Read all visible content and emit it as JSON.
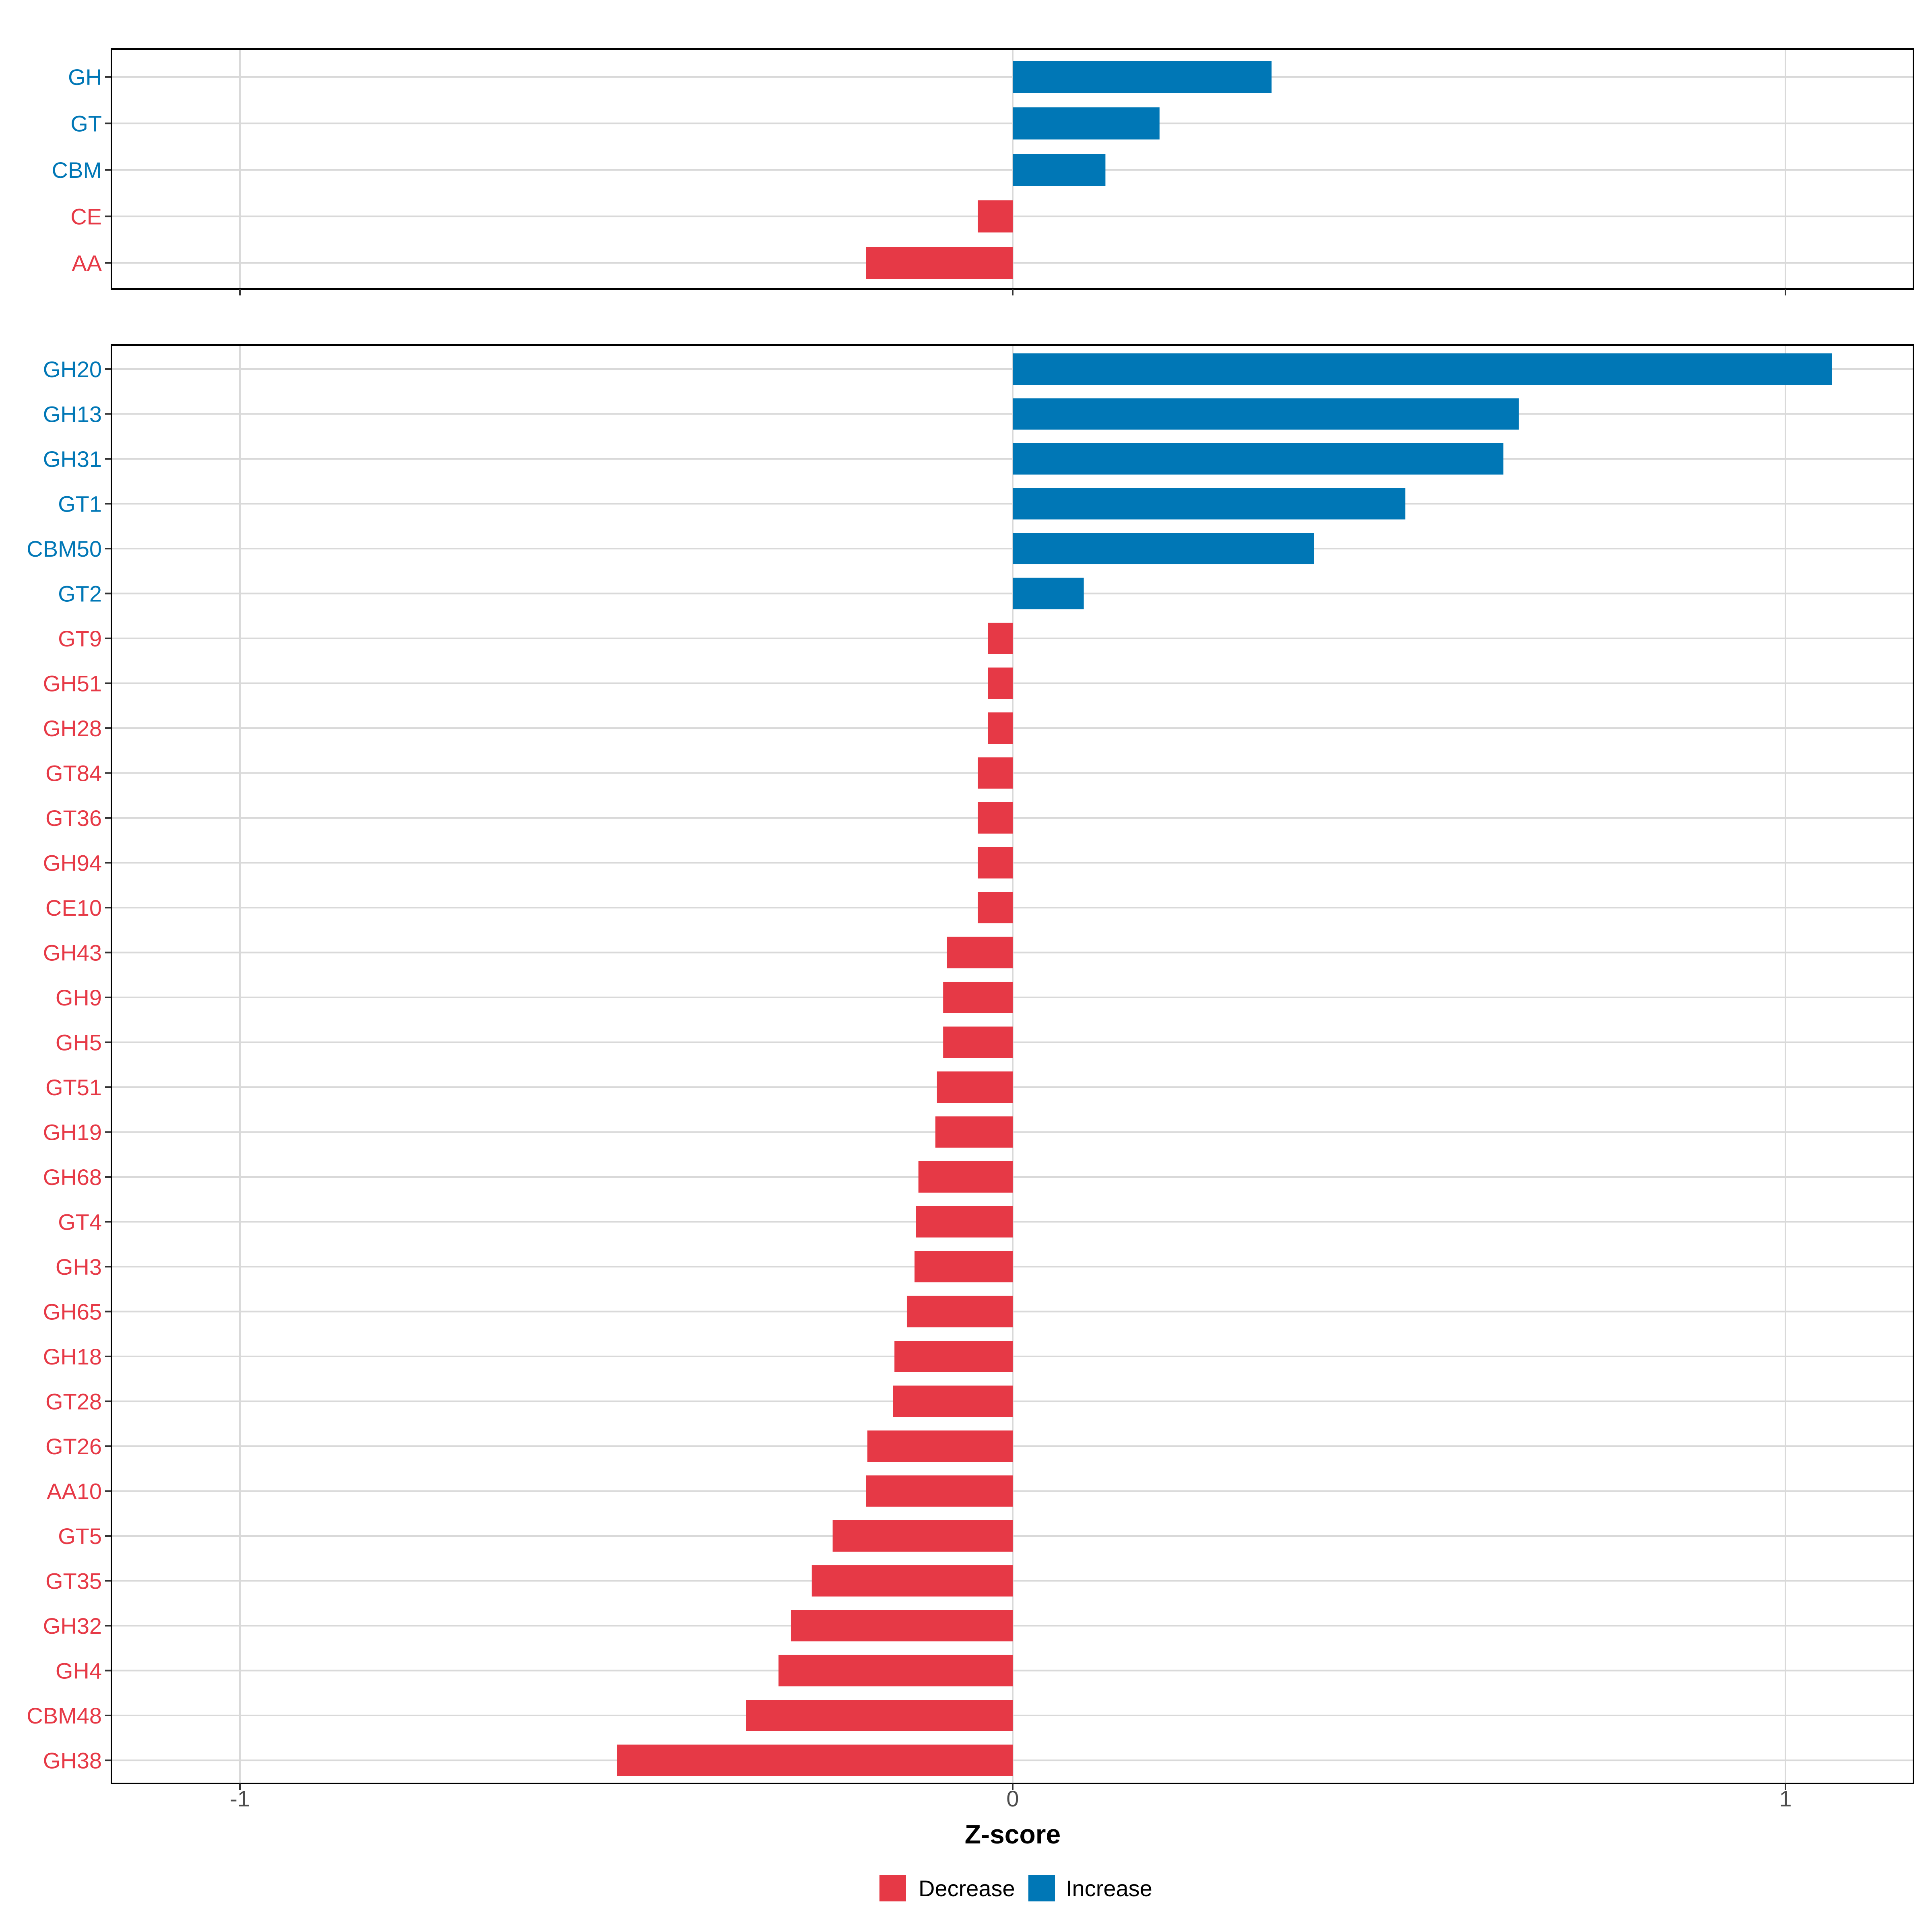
{
  "colors": {
    "increase": "#0077B6",
    "decrease": "#E63946",
    "grid": "#D9D9D9",
    "axis_text": "#4D4D4D",
    "panel_border": "#000000"
  },
  "chart_data": [
    {
      "panel": "top",
      "type": "bar",
      "orientation": "horizontal",
      "xlim": [
        -1.2,
        1.17
      ],
      "categories": [
        "GH",
        "GT",
        "CBM",
        "CE",
        "AA"
      ],
      "values": [
        0.335,
        0.19,
        0.12,
        -0.045,
        -0.19
      ],
      "direction": [
        "Increase",
        "Increase",
        "Increase",
        "Decrease",
        "Decrease"
      ]
    },
    {
      "panel": "bottom",
      "type": "bar",
      "orientation": "horizontal",
      "xlim": [
        -1.2,
        1.17
      ],
      "xticks": [
        -1,
        0,
        1
      ],
      "xtick_labels": [
        "-1",
        "0",
        "1"
      ],
      "xlabel": "Z-score",
      "categories": [
        "GH20",
        "GH13",
        "GH31",
        "GT1",
        "CBM50",
        "GT2",
        "GT9",
        "GH51",
        "GH28",
        "GT84",
        "GT36",
        "GH94",
        "CE10",
        "GH43",
        "GH9",
        "GH5",
        "GT51",
        "GH19",
        "GH68",
        "GT4",
        "GH3",
        "GH65",
        "GH18",
        "GT28",
        "GT26",
        "AA10",
        "GT5",
        "GT35",
        "GH32",
        "GH4",
        "CBM48",
        "GH38"
      ],
      "values": [
        1.06,
        0.655,
        0.635,
        0.508,
        0.39,
        0.092,
        -0.032,
        -0.032,
        -0.032,
        -0.045,
        -0.045,
        -0.045,
        -0.045,
        -0.085,
        -0.09,
        -0.09,
        -0.098,
        -0.1,
        -0.122,
        -0.125,
        -0.127,
        -0.137,
        -0.153,
        -0.155,
        -0.188,
        -0.19,
        -0.233,
        -0.26,
        -0.287,
        -0.303,
        -0.345,
        -0.512
      ],
      "direction": [
        "Increase",
        "Increase",
        "Increase",
        "Increase",
        "Increase",
        "Increase",
        "Decrease",
        "Decrease",
        "Decrease",
        "Decrease",
        "Decrease",
        "Decrease",
        "Decrease",
        "Decrease",
        "Decrease",
        "Decrease",
        "Decrease",
        "Decrease",
        "Decrease",
        "Decrease",
        "Decrease",
        "Decrease",
        "Decrease",
        "Decrease",
        "Decrease",
        "Decrease",
        "Decrease",
        "Decrease",
        "Decrease",
        "Decrease",
        "Decrease",
        "Decrease"
      ]
    }
  ],
  "legend": {
    "position": "bottom",
    "items": [
      {
        "label": "Decrease",
        "color": "#E63946"
      },
      {
        "label": "Increase",
        "color": "#0077B6"
      }
    ]
  }
}
